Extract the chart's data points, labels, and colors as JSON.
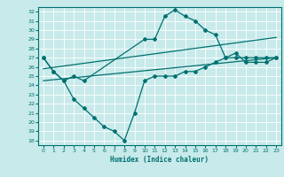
{
  "xlabel": "Humidex (Indice chaleur)",
  "bg_color": "#c8eaea",
  "line_color": "#007070",
  "grid_color": "#a0d0d0",
  "xlim": [
    -0.5,
    23.5
  ],
  "ylim": [
    17.5,
    32.5
  ],
  "yticks": [
    18,
    19,
    20,
    21,
    22,
    23,
    24,
    25,
    26,
    27,
    28,
    29,
    30,
    31,
    32
  ],
  "xticks": [
    0,
    1,
    2,
    3,
    4,
    5,
    6,
    7,
    8,
    9,
    10,
    11,
    12,
    13,
    14,
    15,
    16,
    17,
    18,
    19,
    20,
    21,
    22,
    23
  ],
  "series_upper": {
    "x": [
      0,
      1,
      2,
      3,
      4,
      10,
      11,
      12,
      13,
      14,
      15,
      16,
      17,
      18,
      19,
      20,
      21,
      22,
      23
    ],
    "y": [
      27,
      25.5,
      24.5,
      25,
      24.5,
      29,
      29,
      31.5,
      32.2,
      31.5,
      31,
      30,
      29.5,
      27,
      27,
      27,
      27,
      27,
      27
    ]
  },
  "series_lower": {
    "x": [
      0,
      1,
      2,
      3,
      4,
      5,
      6,
      7,
      8,
      9,
      10,
      11,
      12,
      13,
      14,
      15,
      16,
      17,
      18,
      19,
      20,
      21,
      22,
      23
    ],
    "y": [
      27,
      25.5,
      24.5,
      22.5,
      21.5,
      20.5,
      19.5,
      19,
      18,
      21,
      24.5,
      25,
      25,
      25,
      25.5,
      25.5,
      26,
      26.5,
      27,
      27.5,
      26.5,
      26.5,
      26.5,
      27
    ]
  },
  "trend_upper": {
    "x": [
      0,
      23
    ],
    "y": [
      25.8,
      29.2
    ]
  },
  "trend_lower": {
    "x": [
      0,
      23
    ],
    "y": [
      24.5,
      27.0
    ]
  }
}
